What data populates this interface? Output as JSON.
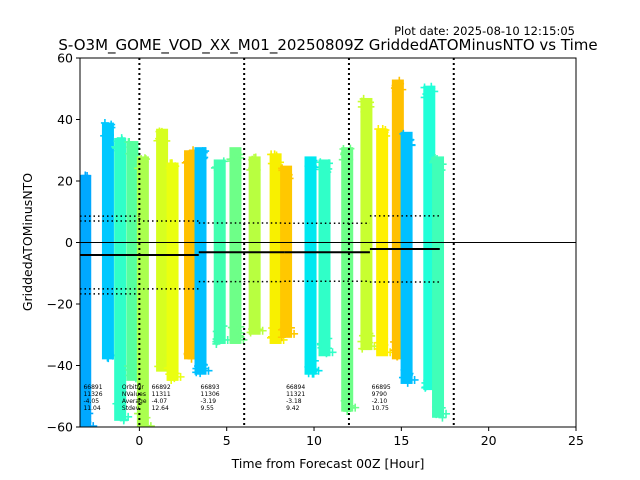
{
  "chart_data": {
    "type": "scatter",
    "plot_date": "Plot date: 2025-08-10 12:15:05",
    "title": "S-O3M_GOME_VOD_XX_M01_20250809Z GriddedATOMinusNTO vs Time",
    "xlabel": "Time from Forecast 00Z [Hour]",
    "ylabel": "GriddedATOMinusNTO",
    "xlim": [
      -3.4,
      25
    ],
    "ylim": [
      -60,
      60
    ],
    "xticks": [
      0,
      5,
      10,
      15,
      20,
      25
    ],
    "yticks": [
      -60,
      -40,
      -20,
      0,
      20,
      40,
      60
    ],
    "zero_line": 0,
    "vlines": [
      0,
      6,
      12,
      18
    ],
    "stat_header": [
      "OrbitNr",
      "NValues",
      "Average",
      "Stdev"
    ],
    "orbit_stats": [
      {
        "orbit": "66891",
        "nvalues": "11326",
        "average": "-4.05",
        "stdev": "11.04",
        "x_start": -3.4,
        "x_end": 3.4,
        "mean": -4.05,
        "std": 11.04
      },
      {
        "orbit": "66892",
        "nvalues": "11311",
        "average": "-4.07",
        "stdev": "12.64",
        "x_start": -3.4,
        "x_end": 0,
        "mean": -4.07,
        "std": 12.64
      },
      {
        "orbit": "66893",
        "nvalues": "11306",
        "average": "-3.19",
        "stdev": "9.55",
        "x_start": 3.4,
        "x_end": 8.3,
        "mean": -3.19,
        "std": 9.55
      },
      {
        "orbit": "66894",
        "nvalues": "11321",
        "average": "-3.18",
        "stdev": "9.42",
        "x_start": 8.3,
        "x_end": 13.2,
        "mean": -3.18,
        "std": 9.42
      },
      {
        "orbit": "66895",
        "nvalues": "9790",
        "average": "-2.10",
        "stdev": "10.75",
        "x_start": 13.2,
        "x_end": 17.2,
        "mean": -2.1,
        "std": 10.75
      }
    ],
    "stat_label_x": [
      -3.2,
      -0.9,
      3.5,
      8.4,
      13.3
    ],
    "series": [
      {
        "x": -3.1,
        "values": [
          -61,
          22
        ],
        "color": "#00a8ff"
      },
      {
        "x": -1.8,
        "values": [
          -38,
          39
        ],
        "color": "#00c8ff"
      },
      {
        "x": -1.1,
        "values": [
          -58,
          34
        ],
        "color": "#30ffc8"
      },
      {
        "x": -0.4,
        "values": [
          -45,
          33
        ],
        "color": "#55ff9e"
      },
      {
        "x": 0.2,
        "values": [
          -61,
          28
        ],
        "color": "#aaff4e"
      },
      {
        "x": 1.3,
        "values": [
          -42,
          37
        ],
        "color": "#d7ff20"
      },
      {
        "x": 1.9,
        "values": [
          -45,
          26
        ],
        "color": "#eaff10"
      },
      {
        "x": 2.9,
        "values": [
          -38,
          30
        ],
        "color": "#ffc000"
      },
      {
        "x": 3.5,
        "values": [
          -43,
          31
        ],
        "color": "#00c0ff"
      },
      {
        "x": 4.6,
        "values": [
          -33,
          27
        ],
        "color": "#40ffb0"
      },
      {
        "x": 5.5,
        "values": [
          -33,
          31
        ],
        "color": "#6eff88"
      },
      {
        "x": 6.6,
        "values": [
          -30,
          28
        ],
        "color": "#b8ff40"
      },
      {
        "x": 7.8,
        "values": [
          -33,
          29
        ],
        "color": "#f8f000"
      },
      {
        "x": 8.4,
        "values": [
          -31,
          25
        ],
        "color": "#ffc800"
      },
      {
        "x": 9.8,
        "values": [
          -43,
          28
        ],
        "color": "#00e8f0"
      },
      {
        "x": 10.6,
        "values": [
          -37,
          27
        ],
        "color": "#30ffc8"
      },
      {
        "x": 11.9,
        "values": [
          -55,
          31
        ],
        "color": "#6eff88"
      },
      {
        "x": 13.0,
        "values": [
          -35,
          47
        ],
        "color": "#c8ff30"
      },
      {
        "x": 13.9,
        "values": [
          -37,
          37
        ],
        "color": "#fff000"
      },
      {
        "x": 14.8,
        "values": [
          -38,
          53
        ],
        "color": "#ffc000"
      },
      {
        "x": 15.3,
        "values": [
          -46,
          36
        ],
        "color": "#00c0ff"
      },
      {
        "x": 16.6,
        "values": [
          -48,
          51
        ],
        "color": "#20ffd8"
      },
      {
        "x": 17.1,
        "values": [
          -57,
          28
        ],
        "color": "#40ffb8"
      }
    ]
  }
}
